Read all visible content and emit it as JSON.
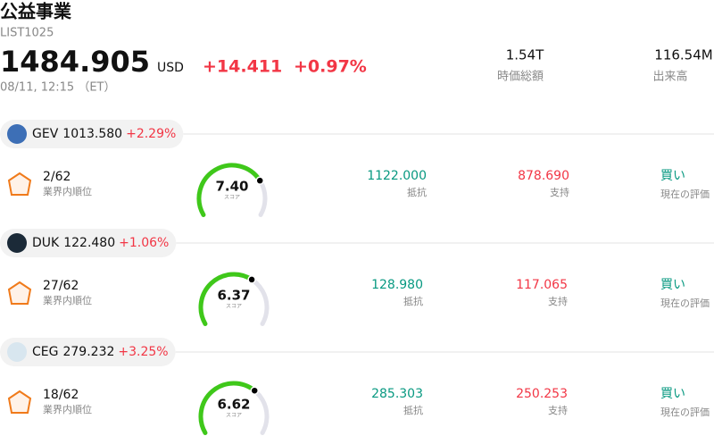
{
  "header": {
    "title": "公益事業",
    "code": "LIST1025",
    "price": "1484.905",
    "currency": "USD",
    "change": "+14.411",
    "change_percent": "+0.97%",
    "datetime": "08/11, 12:15 （ET）",
    "stats": [
      {
        "value": "1.54T",
        "label": "時価総額"
      },
      {
        "value": "116.54M",
        "label": "出来高"
      }
    ]
  },
  "stocks": [
    {
      "ticker": "GEV",
      "price": "1013.580",
      "change": "+2.29%",
      "rank": "2/62",
      "rank_label": "業界内順位",
      "score": "7.40",
      "score_label": "スコア",
      "resistance": "1122.000",
      "resistance_label": "抵抗",
      "support": "878.690",
      "support_label": "支持",
      "rating": "買い",
      "rating_label": "現在の評価"
    },
    {
      "ticker": "DUK",
      "price": "122.480",
      "change": "+1.06%",
      "rank": "27/62",
      "rank_label": "業界内順位",
      "score": "6.37",
      "score_label": "スコア",
      "resistance": "128.980",
      "resistance_label": "抵抗",
      "support": "117.065",
      "support_label": "支持",
      "rating": "買い",
      "rating_label": "現在の評価"
    },
    {
      "ticker": "CEG",
      "price": "279.232",
      "change": "+3.25%",
      "rank": "18/62",
      "rank_label": "業界内順位",
      "score": "6.62",
      "score_label": "スコア",
      "resistance": "285.303",
      "resistance_label": "抵抗",
      "support": "250.253",
      "support_label": "支持",
      "rating": "買い",
      "rating_label": "現在の評価"
    }
  ]
}
